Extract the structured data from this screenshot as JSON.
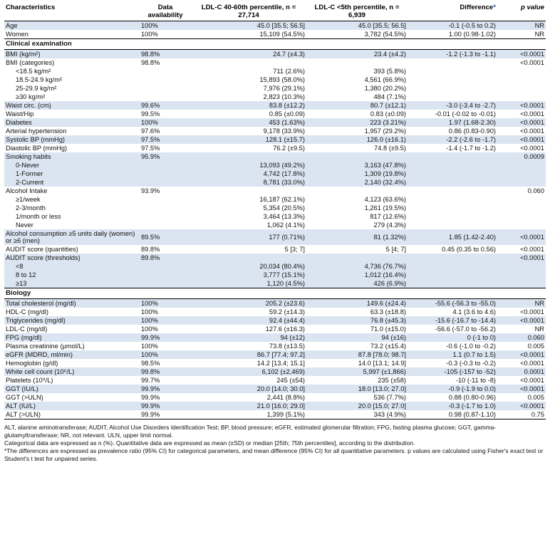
{
  "header": {
    "characteristics": "Characteristics",
    "data_availability": "Data availability",
    "group1": "LDL-C 40-60th percentile, n = 27,714",
    "group2": "LDL-C <5th percentile, n = 6,939",
    "difference": "Difference*",
    "pvalue": "p value"
  },
  "rows": [
    {
      "label": "Age",
      "avail": "100%",
      "g1": "45.0 [35.5; 56.5]",
      "g2": "45.0 [35.5; 56.5]",
      "diff": "-0.1 (-0.5 to 0.2)",
      "p": "NR",
      "shade": true
    },
    {
      "label": "Women",
      "avail": "100%",
      "g1": "15,109 (54.5%)",
      "g2": "3,782 (54.5%)",
      "diff": "1.00 (0.98-1.02)",
      "p": "NR",
      "shade": false
    },
    {
      "section": true,
      "label": "Clinical examination"
    },
    {
      "label": "BMI (kg/m²)",
      "avail": "98.8%",
      "g1": "24.7 (±4.3)",
      "g2": "23.4 (±4.2)",
      "diff": "-1.2 (-1.3 to -1.1)",
      "p": "<0.0001",
      "shade": true
    },
    {
      "label": "BMI (categories)",
      "avail": "98.8%",
      "g1": "",
      "g2": "",
      "diff": "",
      "p": "<0.0001",
      "shade": false
    },
    {
      "label": "<18.5 kg/m²",
      "indent": true,
      "avail": "",
      "g1": "711 (2.6%)",
      "g2": "393 (5.8%)",
      "diff": "",
      "p": "",
      "shade": false
    },
    {
      "label": "18.5-24.9 kg/m²",
      "indent": true,
      "avail": "",
      "g1": "15,893 (58.0%)",
      "g2": "4,561 (66.9%)",
      "diff": "",
      "p": "",
      "shade": false
    },
    {
      "label": "25-29.9 kg/m²",
      "indent": true,
      "avail": "",
      "g1": "7,976 (29.1%)",
      "g2": "1,380 (20.2%)",
      "diff": "",
      "p": "",
      "shade": false
    },
    {
      "label": "≥30 kg/m²",
      "indent": true,
      "avail": "",
      "g1": "2,823 (10.3%)",
      "g2": "484 (7.1%)",
      "diff": "",
      "p": "",
      "shade": false
    },
    {
      "label": "Waist circ. (cm)",
      "avail": "99.6%",
      "g1": "83.8 (±12.2)",
      "g2": "80.7 (±12.1)",
      "diff": "-3.0 (-3.4 to -2.7)",
      "p": "<0.0001",
      "shade": true
    },
    {
      "label": "Waist/Hip",
      "avail": "99.5%",
      "g1": "0.85 (±0.09)",
      "g2": "0.83 (±0.09)",
      "diff": "-0.01 (-0.02 to -0.01)",
      "p": "<0.0001",
      "shade": false
    },
    {
      "label": "Diabetes",
      "avail": "100%",
      "g1": "453 (1.63%)",
      "g2": "223 (3.21%)",
      "diff": "1.97 (1.68-2.30)",
      "p": "<0.0001",
      "shade": true
    },
    {
      "label": "Arterial hypertension",
      "avail": "97.6%",
      "g1": "9,178 (33.9%)",
      "g2": "1,957 (29.2%)",
      "diff": "0.86 (0.83-0.90)",
      "p": "<0.0001",
      "shade": false
    },
    {
      "label": "Systolic BP (mmHg)",
      "avail": "97.5%",
      "g1": "128.1 (±15.7)",
      "g2": "126.0 (±16.1)",
      "diff": "-2.2 (-2.6 to -1.7)",
      "p": "<0.0001",
      "shade": true
    },
    {
      "label": "Diastolic BP (mmHg)",
      "avail": "97.5%",
      "g1": "76.2 (±9.5)",
      "g2": "74.8 (±9.5)",
      "diff": "-1.4 (-1.7 to -1.2)",
      "p": "<0.0001",
      "shade": false
    },
    {
      "label": "Smoking habits",
      "avail": "95.9%",
      "g1": "",
      "g2": "",
      "diff": "",
      "p": "0.0009",
      "shade": true
    },
    {
      "label": "0-Never",
      "indent": true,
      "avail": "",
      "g1": "13,093 (49.2%)",
      "g2": "3,163 (47.8%)",
      "diff": "",
      "p": "",
      "shade": true
    },
    {
      "label": "1-Former",
      "indent": true,
      "avail": "",
      "g1": "4,742 (17.8%)",
      "g2": "1,309 (19.8%)",
      "diff": "",
      "p": "",
      "shade": true
    },
    {
      "label": "2-Current",
      "indent": true,
      "avail": "",
      "g1": "8,781 (33.0%)",
      "g2": "2,140 (32.4%)",
      "diff": "",
      "p": "",
      "shade": true
    },
    {
      "label": "Alcohol Intake",
      "avail": "93.9%",
      "g1": "",
      "g2": "",
      "diff": "",
      "p": "0.060",
      "shade": false
    },
    {
      "label": "≥1/week",
      "indent": true,
      "avail": "",
      "g1": "16,187 (62.1%)",
      "g2": "4,123 (63.6%)",
      "diff": "",
      "p": "",
      "shade": false
    },
    {
      "label": "2-3/month",
      "indent": true,
      "avail": "",
      "g1": "5,354 (20.5%)",
      "g2": "1,261 (19.5%)",
      "diff": "",
      "p": "",
      "shade": false
    },
    {
      "label": "1/month or less",
      "indent": true,
      "avail": "",
      "g1": "3,464 (13.3%)",
      "g2": "817 (12.6%)",
      "diff": "",
      "p": "",
      "shade": false
    },
    {
      "label": "Never",
      "indent": true,
      "avail": "",
      "g1": "1,062 (4.1%)",
      "g2": "279 (4.3%)",
      "diff": "",
      "p": "",
      "shade": false
    },
    {
      "label": "Alcohol consumption ≥5 units daily (women) or ≥6 (men)",
      "two": true,
      "avail": "89.5%",
      "g1": "177 (0.71%)",
      "g2": "81 (1.32%)",
      "diff": "1.85 (1.42-2.40)",
      "p": "<0.0001",
      "shade": true
    },
    {
      "label": "AUDIT score (quantities)",
      "avail": "89.8%",
      "g1": "5 [3; 7]",
      "g2": "5 [4; 7]",
      "diff": "0.45 (0.35 to 0.56)",
      "p": "<0.0001",
      "shade": false
    },
    {
      "label": "AUDIT score (thresholds)",
      "avail": "89.8%",
      "g1": "",
      "g2": "",
      "diff": "",
      "p": "<0.0001",
      "shade": true
    },
    {
      "label": "<8",
      "indent": true,
      "avail": "",
      "g1": "20,034 (80.4%)",
      "g2": "4,736 (76.7%)",
      "diff": "",
      "p": "",
      "shade": true
    },
    {
      "label": "8 to 12",
      "indent": true,
      "avail": "",
      "g1": "3,777 (15.1%)",
      "g2": "1,012 (16.4%)",
      "diff": "",
      "p": "",
      "shade": true
    },
    {
      "label": "≥13",
      "indent": true,
      "avail": "",
      "g1": "1,120 (4.5%)",
      "g2": "426 (6.9%)",
      "diff": "",
      "p": "",
      "shade": true
    },
    {
      "section": true,
      "label": "Biology"
    },
    {
      "label": "Total cholesterol (mg/dl)",
      "avail": "100%",
      "g1": "205.2 (±23.6)",
      "g2": "149.6 (±24.4)",
      "diff": "-55.6 (-56.3 to -55.0)",
      "p": "NR",
      "shade": true
    },
    {
      "label": "HDL-C (mg/dl)",
      "avail": "100%",
      "g1": "59.2 (±14.3)",
      "g2": "63.3 (±18.8)",
      "diff": "4.1 (3.6 to 4.6)",
      "p": "<0.0001",
      "shade": false
    },
    {
      "label": "Triglycerides (mg/dl)",
      "avail": "100%",
      "g1": "92.4 (±44.4)",
      "g2": "76.8 (±45.3)",
      "diff": "-15.6 (-16.7 to -14.4)",
      "p": "<0.0001",
      "shade": true
    },
    {
      "label": "LDL-C (mg/dl)",
      "avail": "100%",
      "g1": "127.6 (±16.3)",
      "g2": "71.0 (±15.0)",
      "diff": "-56.6 (-57.0 to -56.2)",
      "p": "NR",
      "shade": false
    },
    {
      "label": "FPG (mg/dl)",
      "avail": "99.9%",
      "g1": "94 (±12)",
      "g2": "94 (±16)",
      "diff": "0 (-1 to 0)",
      "p": "0.060",
      "shade": true
    },
    {
      "label": "Plasma creatinine (µmol/L)",
      "avail": "100%",
      "g1": "73.8 (±13.5)",
      "g2": "73.2 (±15.4)",
      "diff": "-0.6 (-1.0 to -0.2)",
      "p": "0.005",
      "shade": false
    },
    {
      "label": "eGFR (MDRD, ml/min)",
      "avail": "100%",
      "g1": "86.7 [77.4; 97.2]",
      "g2": "87.8 [78.0; 98.7]",
      "diff": "1.1 (0.7 to 1.5)",
      "p": "<0.0001",
      "shade": true
    },
    {
      "label": "Hemoglobin (g/dl)",
      "avail": "98.5%",
      "g1": "14.2 [13.4; 15.1]",
      "g2": "14.0 [13.1; 14.9]",
      "diff": "-0.3 (-0.3 to -0.2)",
      "p": "<0.0001",
      "shade": false
    },
    {
      "label": "White cell count (10⁶/L)",
      "avail": "99.8%",
      "g1": "6,102 (±2,469)",
      "g2": "5,997 (±1,866)",
      "diff": "-105 (-157 to -52)",
      "p": "0.0001",
      "shade": true
    },
    {
      "label": "Platelets (10⁹/L)",
      "avail": "99.7%",
      "g1": "245 (±54)",
      "g2": "235 (±58)",
      "diff": "-10 (-11 to -8)",
      "p": "<0.0001",
      "shade": false
    },
    {
      "label": "GGT (IU/L)",
      "avail": "99.9%",
      "g1": "20.0 [14.0; 30.0]",
      "g2": "18.0 [13.0; 27.0]",
      "diff": "-0.9 (-1.9 to 0.0)",
      "p": "<0.0001",
      "shade": true
    },
    {
      "label": "GGT (>ULN)",
      "avail": "99.9%",
      "g1": "2,441 (8.8%)",
      "g2": "536 (7.7%)",
      "diff": "0.88 (0.80-0.96)",
      "p": "0.005",
      "shade": false
    },
    {
      "label": "ALT (IU/L)",
      "avail": "99.9%",
      "g1": "21.0 [16.0; 29.0]",
      "g2": "20.0 [15.0; 27.0]",
      "diff": "-0.3 (-1.7 to 1.0)",
      "p": "<0.0001",
      "shade": true
    },
    {
      "label": "ALT (>ULN)",
      "avail": "99.9%",
      "g1": "1,399 (5.1%)",
      "g2": "343 (4.9%)",
      "diff": "0.98 (0.87-1.10)",
      "p": "0.75",
      "shade": false
    }
  ],
  "footnotes": {
    "abbrev": "ALT, alanine aminotransferase; AUDIT, Alcohol Use Disorders Identification Test; BP, blood pressure; eGFR, estimated glomerular filtration; FPG, fasting plasma glucose; GGT, gamma-glutamyltransferase; NR, not relevant. ULN, upper limit normal.",
    "expressed": "Categorical data are expressed as n (%). Quantitative data are expressed as mean (±SD) or median [25th; 75th percentiles], according to the distribution.",
    "differences": "*The differences are expressed as prevalence ratio (95% CI) for categorical parameters, and mean difference (95% CI) for all quantitative parameters. p values are calculated using Fisher's exact test or Student's t test for unpaired series."
  },
  "colors": {
    "row_shade": "#dbe5f1",
    "asterisk": "#2255aa"
  }
}
